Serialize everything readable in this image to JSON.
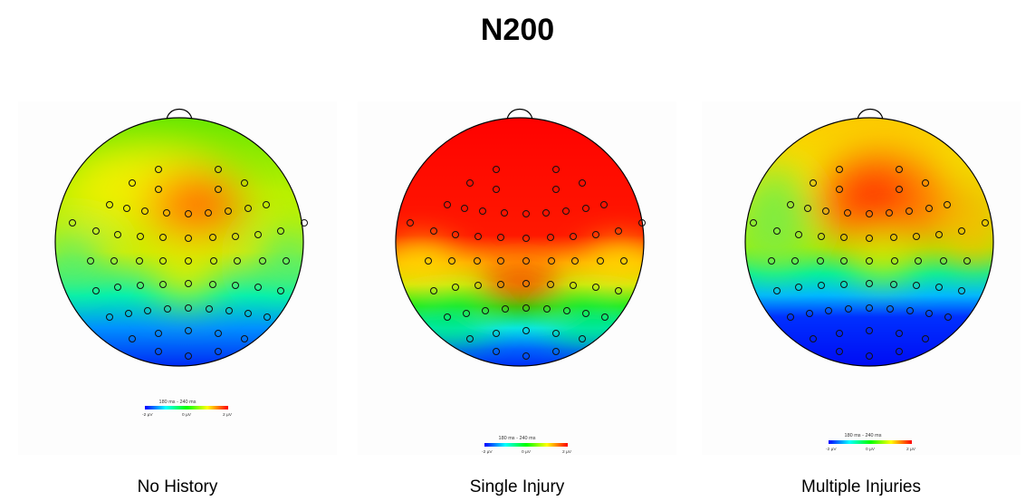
{
  "title": "N200",
  "colorbar": {
    "time_range": "180 ms - 240 ms",
    "min_label": "-2 µV",
    "mid_label": "0 µV",
    "max_label": "2 µV",
    "colors": [
      "#0000ff",
      "#00ffff",
      "#00ff00",
      "#ffff00",
      "#ff0000"
    ]
  },
  "panels": [
    {
      "label": "No History"
    },
    {
      "label": "Single Injury"
    },
    {
      "label": "Multiple Injuries"
    }
  ]
}
